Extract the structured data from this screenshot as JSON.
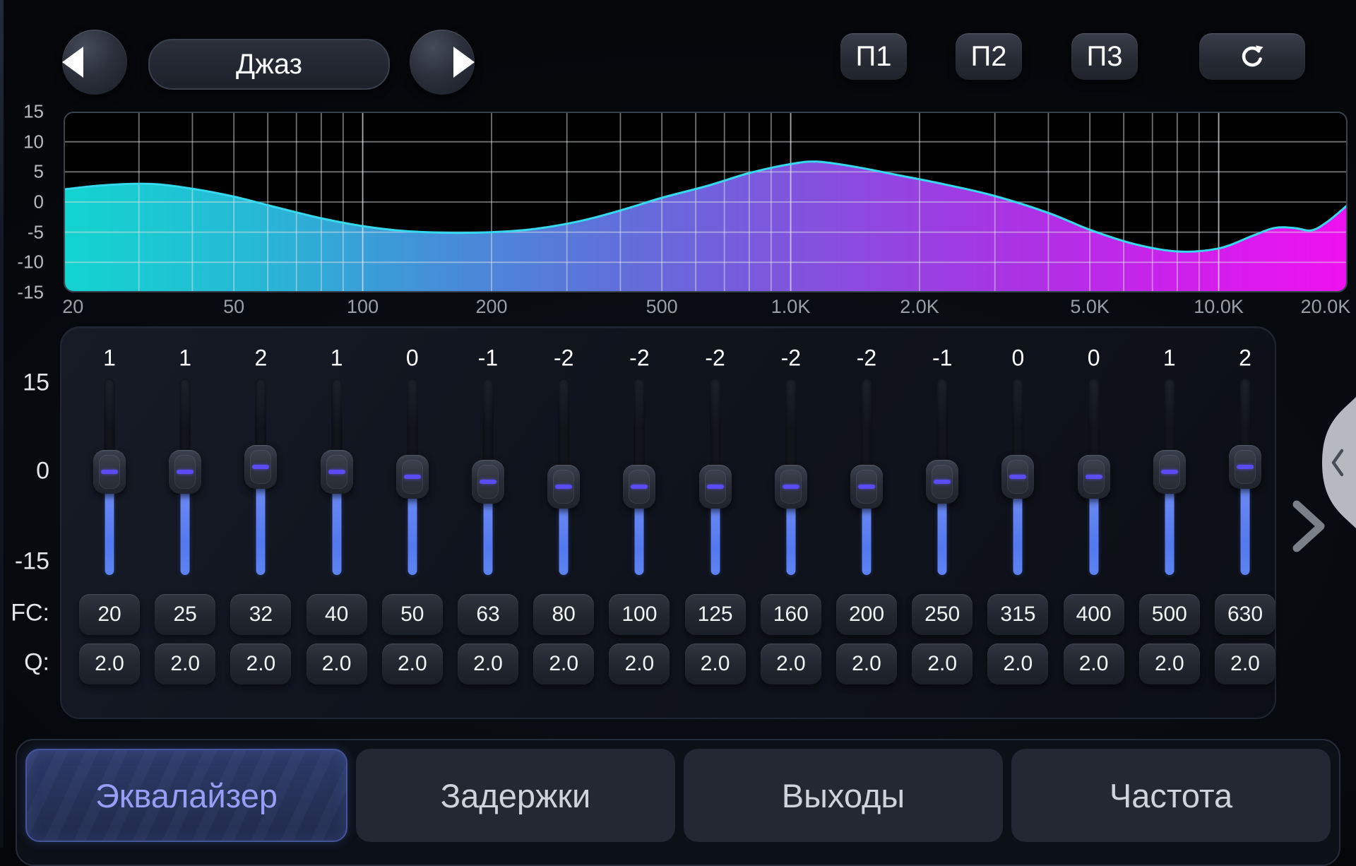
{
  "preset": {
    "name": "Джаз"
  },
  "memory": {
    "buttons": [
      "П1",
      "П2",
      "П3"
    ]
  },
  "chart_data": {
    "type": "area",
    "title": "EQ frequency response",
    "x_scale": "log",
    "x_unit": "Hz",
    "y_unit": "dB",
    "xlim": [
      20,
      20000
    ],
    "ylim": [
      -15,
      15
    ],
    "grid": "log-decades",
    "legend": "none",
    "y_ticks": [
      "15",
      "10",
      "5",
      "0",
      "-5",
      "-10",
      "-15"
    ],
    "x_ticks": [
      {
        "f": 20,
        "label": "20"
      },
      {
        "f": 50,
        "label": "50"
      },
      {
        "f": 100,
        "label": "100"
      },
      {
        "f": 200,
        "label": "200"
      },
      {
        "f": 500,
        "label": "500"
      },
      {
        "f": 1000,
        "label": "1.0K"
      },
      {
        "f": 2000,
        "label": "2.0K"
      },
      {
        "f": 5000,
        "label": "5.0K"
      },
      {
        "f": 10000,
        "label": "10.0K"
      },
      {
        "f": 20000,
        "label": "20.0K"
      }
    ],
    "stroke_color": "#36d9ee",
    "fill_gradient": [
      "#13d4cf",
      "#25bad5",
      "#4390d8",
      "#6070da",
      "#8153de",
      "#a338e3",
      "#c922ea",
      "#ef11f0"
    ],
    "points": [
      [
        20,
        2.1
      ],
      [
        25,
        2.8
      ],
      [
        32,
        3.0
      ],
      [
        40,
        2.2
      ],
      [
        50,
        0.9
      ],
      [
        63,
        -0.9
      ],
      [
        80,
        -2.7
      ],
      [
        100,
        -4.0
      ],
      [
        125,
        -4.8
      ],
      [
        160,
        -5.1
      ],
      [
        200,
        -5.0
      ],
      [
        250,
        -4.5
      ],
      [
        320,
        -3.2
      ],
      [
        400,
        -1.4
      ],
      [
        500,
        0.7
      ],
      [
        640,
        2.7
      ],
      [
        800,
        4.8
      ],
      [
        1000,
        6.3
      ],
      [
        1150,
        6.7
      ],
      [
        1400,
        5.9
      ],
      [
        1800,
        4.4
      ],
      [
        2300,
        2.9
      ],
      [
        3000,
        1.0
      ],
      [
        4000,
        -1.8
      ],
      [
        5000,
        -4.6
      ],
      [
        6300,
        -6.9
      ],
      [
        8000,
        -8.2
      ],
      [
        10000,
        -7.7
      ],
      [
        12000,
        -5.6
      ],
      [
        13500,
        -4.3
      ],
      [
        15000,
        -4.3
      ],
      [
        16500,
        -4.7
      ],
      [
        18000,
        -3.2
      ],
      [
        20000,
        -0.5
      ]
    ]
  },
  "eq": {
    "scale": {
      "top": "15",
      "mid": "0",
      "bottom": "-15"
    },
    "fc_label": "FC:",
    "q_label": "Q:",
    "gain_range": [
      -15,
      15
    ],
    "bands": [
      {
        "gain": "1",
        "fc": "20",
        "q": "2.0"
      },
      {
        "gain": "1",
        "fc": "25",
        "q": "2.0"
      },
      {
        "gain": "2",
        "fc": "32",
        "q": "2.0"
      },
      {
        "gain": "1",
        "fc": "40",
        "q": "2.0"
      },
      {
        "gain": "0",
        "fc": "50",
        "q": "2.0"
      },
      {
        "gain": "-1",
        "fc": "63",
        "q": "2.0"
      },
      {
        "gain": "-2",
        "fc": "80",
        "q": "2.0"
      },
      {
        "gain": "-2",
        "fc": "100",
        "q": "2.0"
      },
      {
        "gain": "-2",
        "fc": "125",
        "q": "2.0"
      },
      {
        "gain": "-2",
        "fc": "160",
        "q": "2.0"
      },
      {
        "gain": "-2",
        "fc": "200",
        "q": "2.0"
      },
      {
        "gain": "-1",
        "fc": "250",
        "q": "2.0"
      },
      {
        "gain": "0",
        "fc": "315",
        "q": "2.0"
      },
      {
        "gain": "0",
        "fc": "400",
        "q": "2.0"
      },
      {
        "gain": "1",
        "fc": "500",
        "q": "2.0"
      },
      {
        "gain": "2",
        "fc": "630",
        "q": "2.0"
      }
    ]
  },
  "tabs": [
    {
      "label": "Эквалайзер",
      "active": true
    },
    {
      "label": "Задержки",
      "active": false
    },
    {
      "label": "Выходы",
      "active": false
    },
    {
      "label": "Частота",
      "active": false
    }
  ]
}
